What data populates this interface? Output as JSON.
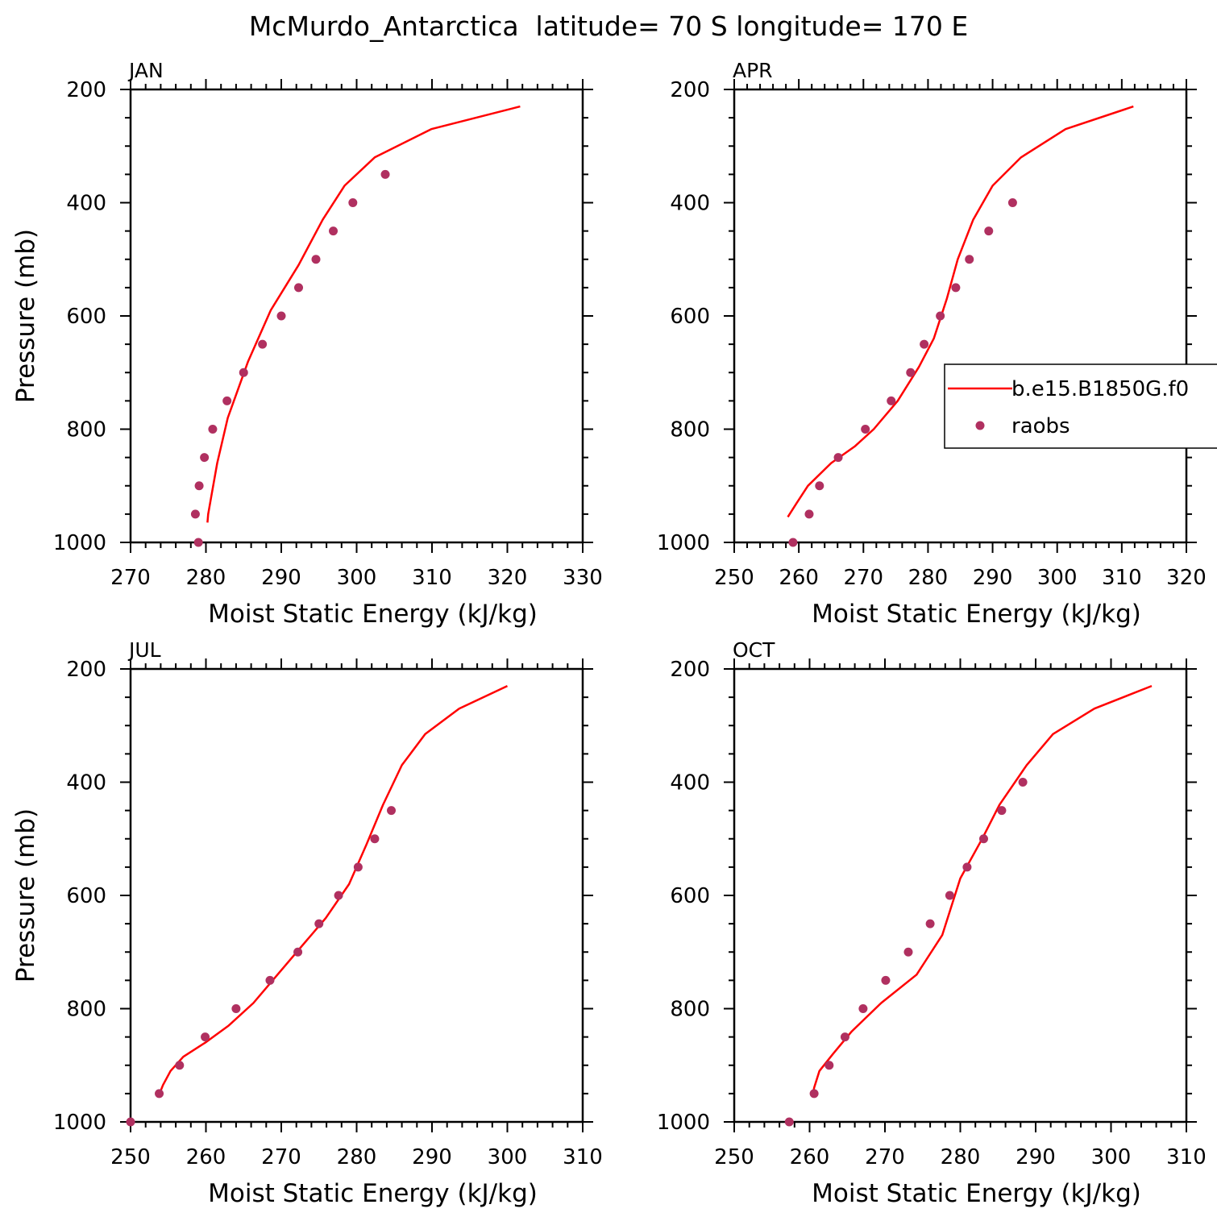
{
  "title": "McMurdo_Antarctica  latitude= 70 S longitude= 170 E",
  "colors": {
    "model_line": "#ff0000",
    "raobs_marker": "#b03060",
    "axis": "#000000"
  },
  "legend": {
    "model_label": "b.e15.B1850G.f0",
    "obs_label": "raobs",
    "placement": "right-middle"
  },
  "chart_data": [
    {
      "type": "line",
      "panel": "JAN",
      "title": "JAN",
      "xlabel": "Moist Static Energy (kJ/kg)",
      "ylabel": "Pressure (mb)",
      "xlim": [
        270,
        330
      ],
      "ylim": [
        1000,
        200
      ],
      "xticks": [
        270,
        280,
        290,
        300,
        310,
        320,
        330
      ],
      "yticks": [
        200,
        400,
        600,
        800,
        1000
      ],
      "grid": false,
      "series": [
        {
          "name": "b.e15.B1850G.f0",
          "style": "line",
          "x": [
            321.7,
            309.9,
            302.4,
            298.4,
            295.5,
            292.3,
            288.6,
            285.6,
            282.9,
            281.5,
            280.7,
            280.3,
            280.2
          ],
          "y": [
            230,
            270,
            320,
            370,
            430,
            510,
            590,
            680,
            780,
            860,
            920,
            950,
            965
          ]
        },
        {
          "name": "raobs",
          "style": "scatter",
          "x": [
            303.8,
            299.5,
            296.9,
            294.6,
            292.3,
            290.0,
            287.5,
            285.0,
            282.8,
            280.9,
            279.8,
            279.1,
            278.6,
            279.0
          ],
          "y": [
            350,
            400,
            450,
            500,
            550,
            600,
            650,
            700,
            750,
            800,
            850,
            900,
            950,
            1000
          ]
        }
      ]
    },
    {
      "type": "line",
      "panel": "APR",
      "title": "APR",
      "xlabel": "Moist Static Energy (kJ/kg)",
      "ylabel": "",
      "xlim": [
        250,
        320
      ],
      "ylim": [
        1000,
        200
      ],
      "xticks": [
        250,
        260,
        270,
        280,
        290,
        300,
        310,
        320
      ],
      "yticks": [
        200,
        400,
        600,
        800,
        1000
      ],
      "grid": false,
      "series": [
        {
          "name": "b.e15.B1850G.f0",
          "style": "line",
          "x": [
            311.8,
            301.3,
            294.4,
            290.0,
            287.0,
            284.6,
            282.9,
            280.9,
            278.6,
            275.3,
            271.6,
            268.7,
            265.0,
            261.4,
            259.7,
            258.3
          ],
          "y": [
            230,
            270,
            320,
            370,
            430,
            500,
            570,
            640,
            690,
            750,
            800,
            830,
            860,
            900,
            930,
            955
          ]
        },
        {
          "name": "raobs",
          "style": "scatter",
          "x": [
            293.1,
            289.4,
            286.4,
            284.3,
            281.9,
            279.4,
            277.3,
            274.3,
            270.3,
            266.1,
            263.2,
            261.6,
            259.1
          ],
          "y": [
            400,
            450,
            500,
            550,
            600,
            650,
            700,
            750,
            800,
            850,
            900,
            950,
            1000
          ]
        }
      ]
    },
    {
      "type": "line",
      "panel": "JUL",
      "title": "JUL",
      "xlabel": "Moist Static Energy (kJ/kg)",
      "ylabel": "Pressure (mb)",
      "xlim": [
        250,
        310
      ],
      "ylim": [
        1000,
        200
      ],
      "xticks": [
        250,
        260,
        270,
        280,
        290,
        300,
        310
      ],
      "yticks": [
        200,
        400,
        600,
        800,
        1000
      ],
      "grid": false,
      "series": [
        {
          "name": "b.e15.B1850G.f0",
          "style": "line",
          "x": [
            300.0,
            293.6,
            289.1,
            286.0,
            283.5,
            281.3,
            279.0,
            275.9,
            272.7,
            269.5,
            266.3,
            263.0,
            259.9,
            257.0,
            255.3,
            254.3,
            253.7
          ],
          "y": [
            230,
            270,
            315,
            370,
            440,
            510,
            580,
            640,
            690,
            740,
            790,
            830,
            860,
            885,
            910,
            935,
            955
          ]
        },
        {
          "name": "raobs",
          "style": "scatter",
          "x": [
            284.6,
            282.4,
            280.2,
            277.6,
            275.0,
            272.2,
            268.5,
            264.0,
            259.9,
            256.5,
            253.8,
            250.0
          ],
          "y": [
            450,
            500,
            550,
            600,
            650,
            700,
            750,
            800,
            850,
            900,
            950,
            1000
          ]
        }
      ]
    },
    {
      "type": "line",
      "panel": "OCT",
      "title": "OCT",
      "xlabel": "Moist Static Energy (kJ/kg)",
      "ylabel": "",
      "xlim": [
        250,
        310
      ],
      "ylim": [
        1000,
        200
      ],
      "xticks": [
        250,
        260,
        270,
        280,
        290,
        300,
        310
      ],
      "yticks": [
        200,
        400,
        600,
        800,
        1000
      ],
      "grid": false,
      "series": [
        {
          "name": "b.e15.B1850G.f0",
          "style": "line",
          "x": [
            305.4,
            297.8,
            292.3,
            288.8,
            285.2,
            282.9,
            280.0,
            277.6,
            274.2,
            269.5,
            265.6,
            263.1,
            261.3,
            260.6,
            260.4
          ],
          "y": [
            230,
            270,
            315,
            370,
            440,
            500,
            570,
            670,
            740,
            790,
            840,
            880,
            910,
            940,
            955
          ]
        },
        {
          "name": "raobs",
          "style": "scatter",
          "x": [
            288.3,
            285.5,
            283.1,
            280.9,
            278.6,
            276.0,
            273.1,
            270.1,
            267.1,
            264.7,
            262.6,
            260.6,
            257.3
          ],
          "y": [
            400,
            450,
            500,
            550,
            600,
            650,
            700,
            750,
            800,
            850,
            900,
            950,
            1000
          ]
        }
      ]
    }
  ]
}
